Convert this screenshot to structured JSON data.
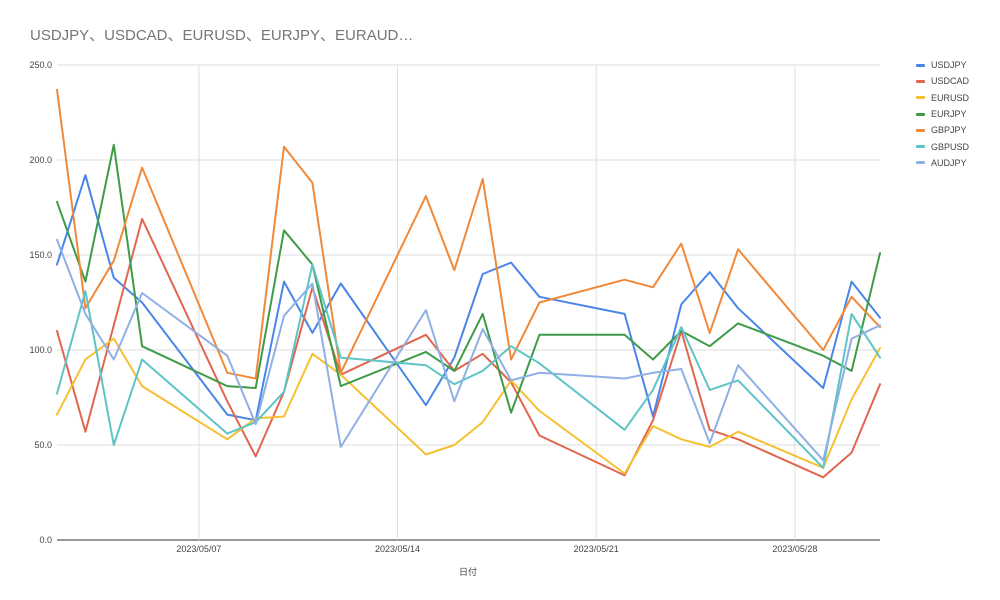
{
  "chart_data": {
    "type": "line",
    "title": "USDJPY、USDCAD、EURUSD、EURJPY、EURAUD…",
    "xlabel": "日付",
    "ylabel": "",
    "ylim": [
      0,
      250
    ],
    "yticks": [
      "0.0",
      "50.0",
      "100.0",
      "150.0",
      "200.0",
      "250.0"
    ],
    "xticks": [
      {
        "label": "2023/05/07",
        "day": 7
      },
      {
        "label": "2023/05/14",
        "day": 14
      },
      {
        "label": "2023/05/21",
        "day": 21
      },
      {
        "label": "2023/05/28",
        "day": 28
      }
    ],
    "x": [
      "2023/05/02",
      "2023/05/03",
      "2023/05/04",
      "2023/05/05",
      "2023/05/08",
      "2023/05/09",
      "2023/05/10",
      "2023/05/11",
      "2023/05/12",
      "2023/05/15",
      "2023/05/16",
      "2023/05/17",
      "2023/05/18",
      "2023/05/19",
      "2023/05/22",
      "2023/05/23",
      "2023/05/24",
      "2023/05/25",
      "2023/05/26",
      "2023/05/29",
      "2023/05/30",
      "2023/05/31"
    ],
    "x_days": [
      2,
      3,
      4,
      5,
      8,
      9,
      10,
      11,
      12,
      15,
      16,
      17,
      18,
      19,
      22,
      23,
      24,
      25,
      26,
      29,
      30,
      31
    ],
    "grid": true,
    "legend_position": "right",
    "series": [
      {
        "name": "USDJPY",
        "color": "#4a86e8",
        "values": [
          145,
          192,
          138,
          125,
          66,
          63,
          136,
          109,
          135,
          71,
          96,
          140,
          146,
          128,
          119,
          65,
          124,
          141,
          122,
          80,
          136,
          117
        ]
      },
      {
        "name": "USDCAD",
        "color": "#e06650",
        "values": [
          110,
          57,
          113,
          169,
          73,
          44,
          78,
          133,
          87,
          108,
          89,
          98,
          83,
          55,
          34,
          63,
          110,
          58,
          53,
          33,
          46,
          82
        ]
      },
      {
        "name": "EURUSD",
        "color": "#f6c033",
        "values": [
          66,
          95,
          106,
          81,
          53,
          64,
          65,
          98,
          87,
          45,
          50,
          62,
          84,
          68,
          35,
          60,
          53,
          49,
          57,
          38,
          74,
          101
        ]
      },
      {
        "name": "EURJPY",
        "color": "#3e9b48",
        "values": [
          178,
          136,
          208,
          102,
          81,
          80,
          163,
          145,
          81,
          99,
          89,
          119,
          67,
          108,
          108,
          95,
          110,
          102,
          114,
          97,
          89,
          151
        ]
      },
      {
        "name": "GBPJPY",
        "color": "#f0893a",
        "values": [
          237,
          122,
          147,
          196,
          88,
          85,
          207,
          188,
          88,
          181,
          142,
          190,
          95,
          125,
          137,
          133,
          156,
          109,
          153,
          100,
          128,
          112
        ]
      },
      {
        "name": "GBPUSD",
        "color": "#5ec4c6",
        "values": [
          77,
          131,
          50,
          95,
          56,
          62,
          78,
          145,
          96,
          92,
          82,
          89,
          102,
          93,
          58,
          79,
          112,
          79,
          84,
          38,
          119,
          96
        ]
      },
      {
        "name": "AUDJPY",
        "color": "#8fb0e4",
        "values": [
          158,
          119,
          95,
          130,
          97,
          61,
          118,
          135,
          49,
          121,
          73,
          111,
          84,
          88,
          85,
          88,
          90,
          51,
          92,
          42,
          106,
          113
        ]
      }
    ]
  }
}
